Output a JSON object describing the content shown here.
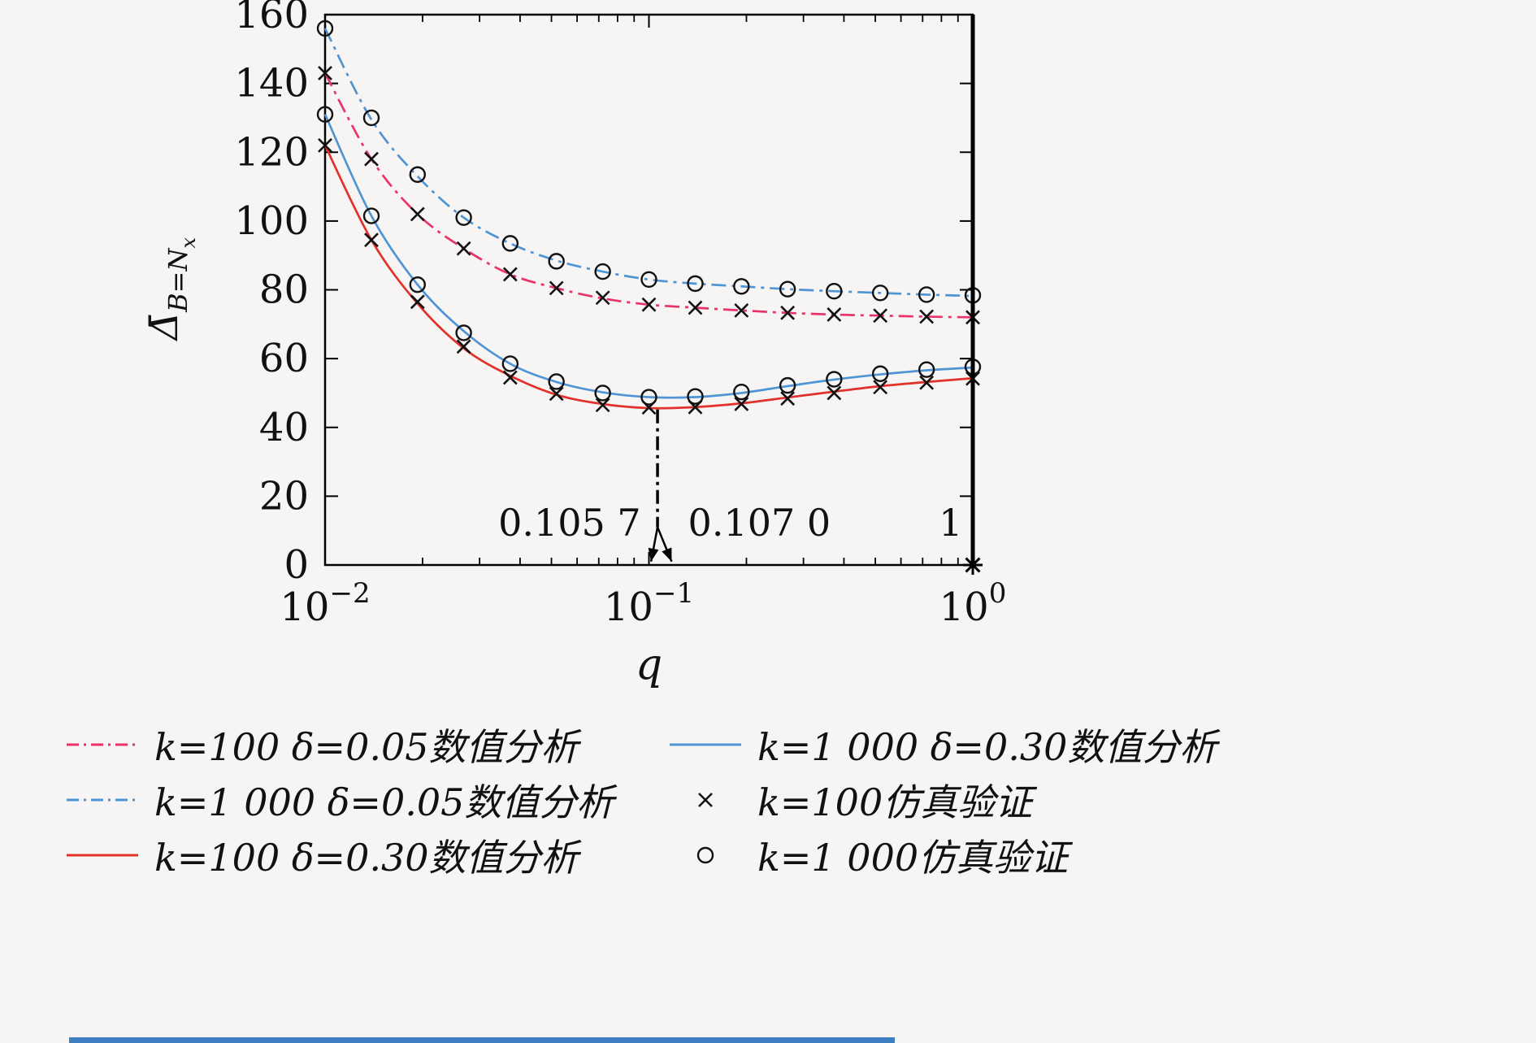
{
  "page": {
    "background": "#f6f5f3",
    "bottom_bar_color": "#3e7fc1",
    "axis_color": "#000000",
    "text_color": "#111111"
  },
  "chart_data": {
    "type": "line",
    "title": "",
    "xlabel": "q",
    "ylabel": "Δ̄_{B=N_x}",
    "ylabel_parts": {
      "main": "Δ̄",
      "sub": "B=N",
      "subsub": "x"
    },
    "x_scale": "log",
    "grid": false,
    "legend_position": "below",
    "xlim": [
      0.01,
      1
    ],
    "ylim": [
      0,
      160
    ],
    "yticks": [
      0,
      20,
      40,
      60,
      80,
      100,
      120,
      140,
      160
    ],
    "xticks": [
      {
        "value": 0.01,
        "base": "10",
        "exp": "−2"
      },
      {
        "value": 0.1,
        "base": "10",
        "exp": "−1"
      },
      {
        "value": 1,
        "base": "10",
        "exp": "0"
      }
    ],
    "x": [
      0.01,
      0.0139,
      0.0193,
      0.0268,
      0.0373,
      0.0518,
      0.072,
      0.1,
      0.139,
      0.193,
      0.268,
      0.373,
      0.518,
      0.72,
      1.0
    ],
    "series": [
      {
        "name": "k=100 δ=0.05数值分析",
        "style": "dashdot",
        "color": "#e8336d",
        "values": [
          143,
          118,
          102,
          92,
          84.5,
          80.5,
          77.5,
          75.7,
          74.8,
          74,
          73.3,
          72.8,
          72.5,
          72.2,
          72
        ]
      },
      {
        "name": "k=1 000 δ=0.05数值分析",
        "style": "dashdot",
        "color": "#4f94d4",
        "values": [
          156,
          129.5,
          113,
          101,
          93.5,
          88.5,
          85.3,
          83,
          81.8,
          81,
          80.2,
          79.6,
          79.1,
          78.6,
          78.2
        ]
      },
      {
        "name": "k=100 δ=0.30数值分析",
        "style": "solid",
        "color": "#e0312a",
        "values": [
          122,
          94.5,
          76,
          63,
          55,
          49.5,
          46.8,
          45.6,
          45.9,
          47,
          48.7,
          50.4,
          52,
          53.2,
          54.3
        ]
      },
      {
        "name": "k=1 000 δ=0.30数值分析",
        "style": "solid",
        "color": "#4f94d4",
        "values": [
          131,
          101.5,
          81.5,
          68,
          58.5,
          53.2,
          50.2,
          48.8,
          48.8,
          50,
          52,
          53.9,
          55.4,
          56.6,
          57.4
        ]
      }
    ],
    "marker_series": [
      {
        "name": "k=100仿真验证",
        "marker": "x",
        "color": "#111111",
        "sets": [
          [
            143,
            118,
            102,
            92,
            84.5,
            80.5,
            77.7,
            75.7,
            74.8,
            74,
            73.3,
            72.8,
            72.5,
            72.2,
            72
          ],
          [
            122,
            94.5,
            76.5,
            63.5,
            54.5,
            49.8,
            46.5,
            45.8,
            45.9,
            46.8,
            48.4,
            50,
            51.7,
            53,
            54.2
          ]
        ]
      },
      {
        "name": "k=1 000仿真验证",
        "marker": "o",
        "color": "#111111",
        "sets": [
          [
            156,
            130,
            113.5,
            101,
            93.5,
            88.3,
            85.3,
            83,
            81.8,
            81,
            80.2,
            79.6,
            79.1,
            78.6,
            78.4
          ],
          [
            131,
            101.5,
            81.5,
            67.5,
            58.5,
            53.3,
            50,
            48.8,
            49,
            50.3,
            52.2,
            54,
            55.6,
            56.8,
            57.6
          ]
        ]
      }
    ],
    "annotations": {
      "min_line": {
        "x": 0.1063,
        "y_top": 45.2,
        "y_bottom": 11
      },
      "arrows": [
        {
          "x1": 0.1063,
          "y1": 11,
          "x2": 0.1015,
          "y2": 1
        },
        {
          "x1": 0.1063,
          "y1": 11,
          "x2": 0.1175,
          "y2": 1
        }
      ],
      "labels": [
        {
          "text": "0.105 7",
          "x": 0.0945,
          "y": 8.5,
          "anchor": "end"
        },
        {
          "text": "0.107 0",
          "x": 0.132,
          "y": 8.5,
          "anchor": "start"
        },
        {
          "text": "1",
          "x": 0.93,
          "y": 8.5,
          "anchor": "end"
        }
      ],
      "vline_x": 1.0,
      "star": {
        "x": 1.0,
        "y": 0
      }
    }
  },
  "legend": {
    "items": [
      {
        "label": "k=100 δ=0.05数值分析",
        "swatch": "line",
        "style": "dashdot",
        "color": "#e8336d"
      },
      {
        "label": "k=1 000 δ=0.30数值分析",
        "swatch": "line",
        "style": "solid",
        "color": "#4f94d4"
      },
      {
        "label": "k=1 000 δ=0.05数值分析",
        "swatch": "line",
        "style": "dashdot",
        "color": "#4f94d4"
      },
      {
        "label": "k=100仿真验证",
        "swatch": "marker",
        "marker": "x",
        "color": "#111111"
      },
      {
        "label": "k=100 δ=0.30数值分析",
        "swatch": "line",
        "style": "solid",
        "color": "#e0312a"
      },
      {
        "label": "k=1 000仿真验证",
        "swatch": "marker",
        "marker": "o",
        "color": "#111111"
      }
    ]
  }
}
